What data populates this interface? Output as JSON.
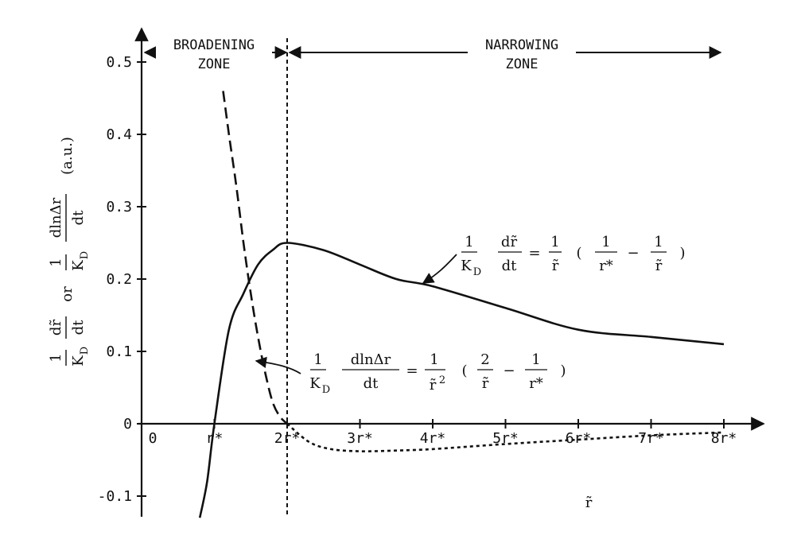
{
  "chart_data": {
    "type": "line",
    "xlabel": "r̃",
    "x_unit": "r*",
    "xlim": [
      0,
      8
    ],
    "ylim": [
      -0.1,
      0.5
    ],
    "x_ticks": [
      "0",
      "r*",
      "2r*",
      "3r*",
      "4r*",
      "5r*",
      "6r*",
      "7r*",
      "8r*"
    ],
    "y_ticks": [
      "-0.1",
      "0",
      "0.1",
      "0.2",
      "0.3",
      "0.4",
      "0.5"
    ],
    "y_tick_values": [
      -0.1,
      0,
      0.1,
      0.2,
      0.3,
      0.4,
      0.5
    ],
    "ylabel_parts": {
      "prefix": "1",
      "k": "K",
      "d": "D",
      "drdt_num": "dr̃",
      "dt": "dt",
      "or": "or",
      "dlnar": "dlnΔr",
      "unit": "(a.u.)"
    },
    "vline_x": 2,
    "zones": [
      {
        "line1": "BROADENING",
        "line2": "ZONE"
      },
      {
        "line1": "NARROWING",
        "line2": "ZONE"
      }
    ],
    "series": [
      {
        "style": "solid",
        "x": [
          0.8,
          0.9,
          1.0,
          1.2,
          1.4,
          1.6,
          1.8,
          2.0,
          2.5,
          3.0,
          3.5,
          4.0,
          5.0,
          6.0,
          7.0,
          8.0
        ],
        "y": [
          -0.13,
          -0.08,
          0.0,
          0.13,
          0.18,
          0.22,
          0.24,
          0.25,
          0.24,
          0.22,
          0.2,
          0.19,
          0.16,
          0.13,
          0.12,
          0.11
        ],
        "equation": {
          "one": "1",
          "k": "K",
          "d": "D",
          "num": "dr̃",
          "den": "dt",
          "eq": "=",
          "rhs_one": "1",
          "rhs_r": "r̃",
          "paren_open": "(",
          "a_one": "1",
          "a_den": "r*",
          "minus": "−",
          "b_one": "1",
          "b_den": "r̃",
          "paren_close": ")"
        }
      },
      {
        "style": "dashed",
        "x": [
          1.12,
          1.2,
          1.3,
          1.4,
          1.5,
          1.6,
          1.7,
          1.8,
          1.9,
          2.0
        ],
        "y": [
          0.46,
          0.4,
          0.33,
          0.25,
          0.18,
          0.12,
          0.07,
          0.03,
          0.01,
          0.0
        ]
      },
      {
        "style": "dotted",
        "x": [
          2.0,
          2.3,
          2.6,
          3.0,
          3.5,
          4.0,
          5.0,
          6.0,
          7.0,
          8.0
        ],
        "y": [
          0.0,
          -0.025,
          -0.035,
          -0.038,
          -0.037,
          -0.035,
          -0.028,
          -0.022,
          -0.016,
          -0.012
        ],
        "equation": {
          "one": "1",
          "k": "K",
          "d": "D",
          "num": "dlnΔr",
          "den": "dt",
          "eq": "=",
          "rhs_one": "1",
          "rhs_r": "r̃",
          "rhs_pow": "2",
          "paren_open": "(",
          "a_one": "2",
          "a_den": "r̃",
          "minus": "−",
          "b_one": "1",
          "b_den": "r*",
          "paren_close": ")"
        }
      }
    ]
  }
}
